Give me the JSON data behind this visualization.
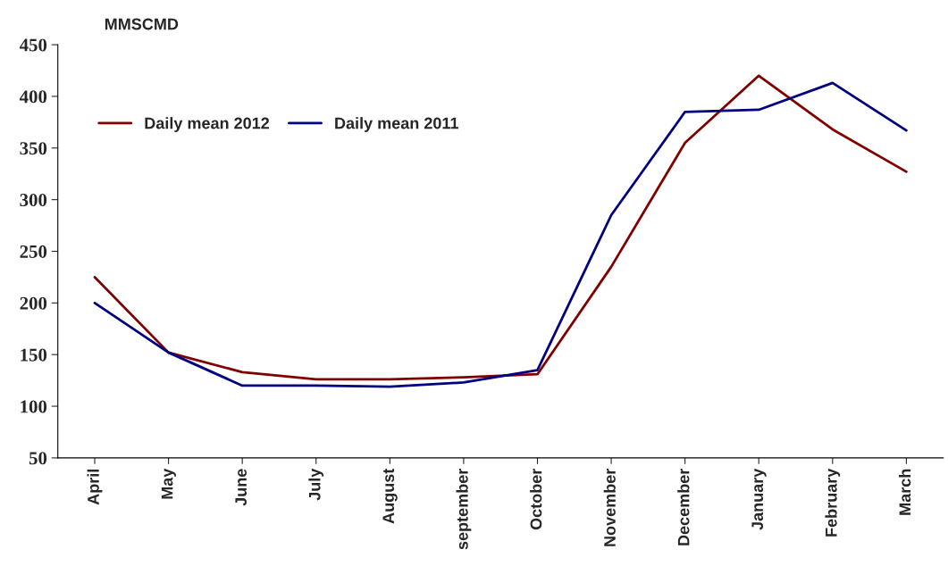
{
  "chart_data": {
    "type": "line",
    "ylabel": "MMSCMD",
    "categories": [
      "April",
      "May",
      "June",
      "July",
      "August",
      "september",
      "October",
      "November",
      "December",
      "January",
      "February",
      "March"
    ],
    "series": [
      {
        "name": "Daily mean 2012",
        "color": "#800000",
        "values": [
          225,
          152,
          133,
          126,
          126,
          128,
          131,
          235,
          355,
          420,
          368,
          327
        ]
      },
      {
        "name": "Daily mean 2011",
        "color": "#000080",
        "values": [
          200,
          152,
          120,
          120,
          119,
          123,
          135,
          285,
          385,
          387,
          413,
          367
        ]
      }
    ],
    "ylim": [
      50,
      450
    ],
    "yticks": [
      50,
      100,
      150,
      200,
      250,
      300,
      350,
      400,
      450
    ],
    "grid": false,
    "legend": "top left",
    "marker": "none",
    "line_style": "solid"
  }
}
